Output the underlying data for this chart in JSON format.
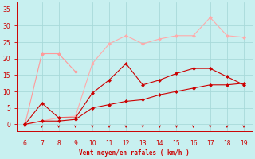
{
  "x": [
    6,
    7,
    8,
    9,
    10,
    11,
    12,
    13,
    14,
    15,
    16,
    17,
    18,
    19
  ],
  "line1_x": [
    6,
    7,
    8,
    9
  ],
  "line1_y": [
    0,
    21.5,
    21.5,
    16
  ],
  "line2": [
    0,
    6.5,
    2,
    2,
    9.5,
    13.5,
    18.5,
    12,
    13.5,
    15.5,
    17,
    17,
    14.5,
    12
  ],
  "line3": [
    0,
    1,
    1,
    1.5,
    5,
    6,
    7,
    7.5,
    9,
    10,
    11,
    12,
    12,
    12.5
  ],
  "line4": [
    0,
    1,
    2,
    2.5,
    18.5,
    24.5,
    27,
    24.5,
    26,
    27,
    27,
    32.5,
    27,
    26.5
  ],
  "bg_color": "#c8f0f0",
  "grid_color": "#a8dada",
  "line1_color": "#ff9999",
  "line2_color": "#cc0000",
  "line3_color": "#cc0000",
  "line4_color": "#ffaaaa",
  "xlabel": "Vent moyen/en rafales ( km/h )",
  "xlim": [
    5.5,
    19.5
  ],
  "ylim": [
    -2,
    37
  ],
  "yticks": [
    0,
    5,
    10,
    15,
    20,
    25,
    30,
    35
  ],
  "xticks": [
    6,
    7,
    8,
    9,
    10,
    11,
    12,
    13,
    14,
    15,
    16,
    17,
    18,
    19
  ],
  "tick_color": "#cc0000",
  "label_color": "#cc0000",
  "axis_color": "#cc0000",
  "marker_size": 2.5,
  "lw": 0.8
}
